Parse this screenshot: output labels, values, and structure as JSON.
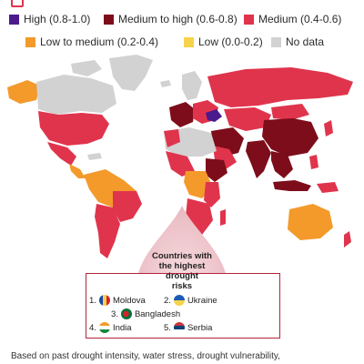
{
  "colors": {
    "high": "#4b1a8c",
    "medium_to_high": "#7d0d1a",
    "medium": "#e0344d",
    "low_to_medium": "#f39a2b",
    "low": "#f6d34a",
    "no_data": "#d2d2d2",
    "ocean": "#ffffff",
    "accent": "#b3243a"
  },
  "legend": {
    "items": [
      {
        "label": "High (0.8-1.0)",
        "color": "#4b1a8c"
      },
      {
        "label": "Medium to high (0.6-0.8)",
        "color": "#7d0d1a"
      },
      {
        "label": "Medium (0.4-0.6)",
        "color": "#e0344d"
      },
      {
        "label": "Low to medium (0.2-0.4)",
        "color": "#f39a2b"
      },
      {
        "label": "Low (0.0-0.2)",
        "color": "#f6d34a"
      },
      {
        "label": "No data",
        "color": "#d2d2d2"
      }
    ]
  },
  "callout": {
    "title_lines": [
      "Countries with",
      "the highest",
      "drought",
      "risks"
    ],
    "ranking": [
      {
        "rank": "1.",
        "country": "Moldova",
        "flag_icon": "moldova-flag-icon"
      },
      {
        "rank": "2.",
        "country": "Ukraine",
        "flag_icon": "ukraine-flag-icon"
      },
      {
        "rank": "3.",
        "country": "Bangladesh",
        "flag_icon": "bangladesh-flag-icon"
      },
      {
        "rank": "4.",
        "country": "India",
        "flag_icon": "india-flag-icon"
      },
      {
        "rank": "5.",
        "country": "Serbia",
        "flag_icon": "serbia-flag-icon"
      }
    ]
  },
  "footer": {
    "text": "Based on past drought intensity, water stress, drought vulnerability,"
  }
}
